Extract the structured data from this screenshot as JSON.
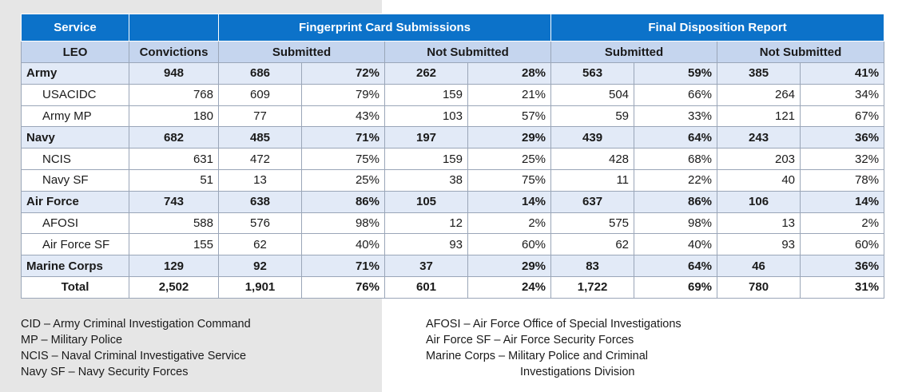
{
  "table": {
    "header_row1": {
      "service": "Service",
      "fingerprint": "Fingerprint Card Submissions",
      "disposition": "Final Disposition Report"
    },
    "header_row2": {
      "leo": "LEO",
      "convictions": "Convictions",
      "fp_submitted": "Submitted",
      "fp_not_submitted": "Not Submitted",
      "fd_submitted": "Submitted",
      "fd_not_submitted": "Not Submitted"
    },
    "rows": [
      {
        "name": "Army",
        "type": "group",
        "convictions": "948",
        "fp_sub_n": "686",
        "fp_sub_p": "72%",
        "fp_not_n": "262",
        "fp_not_p": "28%",
        "fd_sub_n": "563",
        "fd_sub_p": "59%",
        "fd_not_n": "385",
        "fd_not_p": "41%"
      },
      {
        "name": "USACIDC",
        "type": "sub",
        "convictions": "768",
        "fp_sub_n": "609",
        "fp_sub_p": "79%",
        "fp_not_n": "159",
        "fp_not_p": "21%",
        "fd_sub_n": "504",
        "fd_sub_p": "66%",
        "fd_not_n": "264",
        "fd_not_p": "34%"
      },
      {
        "name": "Army MP",
        "type": "sub",
        "convictions": "180",
        "fp_sub_n": "77",
        "fp_sub_p": "43%",
        "fp_not_n": "103",
        "fp_not_p": "57%",
        "fd_sub_n": "59",
        "fd_sub_p": "33%",
        "fd_not_n": "121",
        "fd_not_p": "67%"
      },
      {
        "name": "Navy",
        "type": "group",
        "convictions": "682",
        "fp_sub_n": "485",
        "fp_sub_p": "71%",
        "fp_not_n": "197",
        "fp_not_p": "29%",
        "fd_sub_n": "439",
        "fd_sub_p": "64%",
        "fd_not_n": "243",
        "fd_not_p": "36%"
      },
      {
        "name": "NCIS",
        "type": "sub",
        "convictions": "631",
        "fp_sub_n": "472",
        "fp_sub_p": "75%",
        "fp_not_n": "159",
        "fp_not_p": "25%",
        "fd_sub_n": "428",
        "fd_sub_p": "68%",
        "fd_not_n": "203",
        "fd_not_p": "32%"
      },
      {
        "name": "Navy SF",
        "type": "sub",
        "convictions": "51",
        "fp_sub_n": "13",
        "fp_sub_p": "25%",
        "fp_not_n": "38",
        "fp_not_p": "75%",
        "fd_sub_n": "11",
        "fd_sub_p": "22%",
        "fd_not_n": "40",
        "fd_not_p": "78%"
      },
      {
        "name": "Air Force",
        "type": "group",
        "convictions": "743",
        "fp_sub_n": "638",
        "fp_sub_p": "86%",
        "fp_not_n": "105",
        "fp_not_p": "14%",
        "fd_sub_n": "637",
        "fd_sub_p": "86%",
        "fd_not_n": "106",
        "fd_not_p": "14%"
      },
      {
        "name": "AFOSI",
        "type": "sub",
        "convictions": "588",
        "fp_sub_n": "576",
        "fp_sub_p": "98%",
        "fp_not_n": "12",
        "fp_not_p": "2%",
        "fd_sub_n": "575",
        "fd_sub_p": "98%",
        "fd_not_n": "13",
        "fd_not_p": "2%"
      },
      {
        "name": "Air Force SF",
        "type": "sub",
        "convictions": "155",
        "fp_sub_n": "62",
        "fp_sub_p": "40%",
        "fp_not_n": "93",
        "fp_not_p": "60%",
        "fd_sub_n": "62",
        "fd_sub_p": "40%",
        "fd_not_n": "93",
        "fd_not_p": "60%"
      },
      {
        "name": "Marine Corps",
        "type": "group",
        "convictions": "129",
        "fp_sub_n": "92",
        "fp_sub_p": "71%",
        "fp_not_n": "37",
        "fp_not_p": "29%",
        "fd_sub_n": "83",
        "fd_sub_p": "64%",
        "fd_not_n": "46",
        "fd_not_p": "36%"
      },
      {
        "name": "Total",
        "type": "total",
        "convictions": "2,502",
        "fp_sub_n": "1,901",
        "fp_sub_p": "76%",
        "fp_not_n": "601",
        "fp_not_p": "24%",
        "fd_sub_n": "1,722",
        "fd_sub_p": "69%",
        "fd_not_n": "780",
        "fd_not_p": "31%"
      }
    ]
  },
  "legend": {
    "left": [
      "CID – Army Criminal Investigation Command",
      "MP – Military Police",
      "NCIS – Naval Criminal Investigative Service",
      "Navy SF – Navy Security Forces"
    ],
    "right": [
      "AFOSI – Air Force Office of Special Investigations",
      "Air Force SF – Air Force Security Forces",
      "Marine Corps – Military Police and Criminal",
      "Investigations Division"
    ]
  },
  "colors": {
    "header_blue": "#0c72c9",
    "subheader_blue": "#c5d5ee",
    "group_row": "#e2eaf7",
    "left_panel_gray": "#e6e6e6"
  }
}
